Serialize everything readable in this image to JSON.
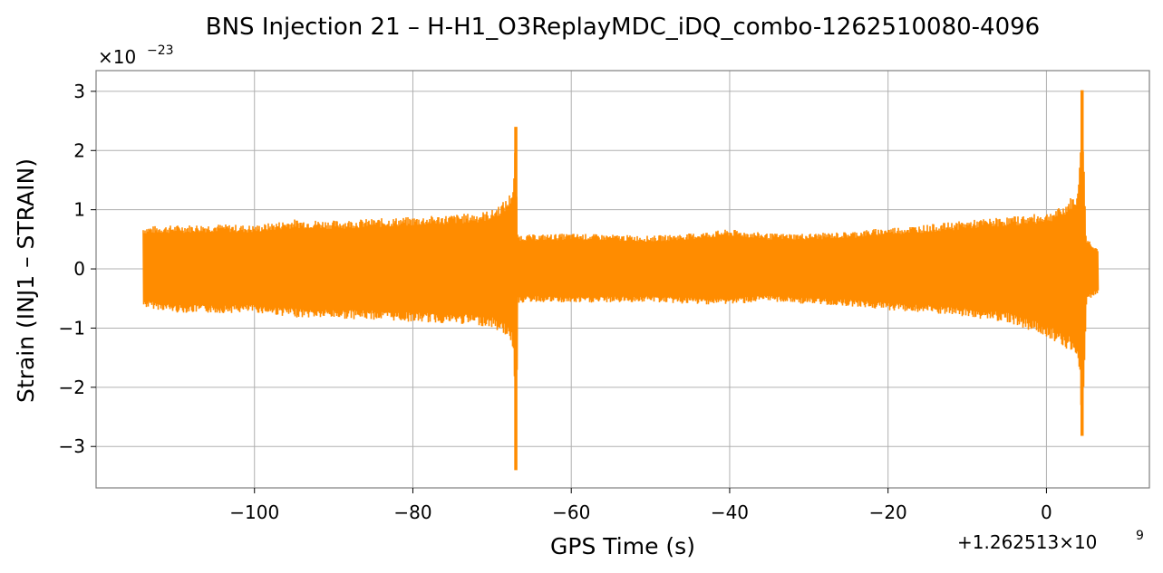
{
  "chart_data": {
    "type": "line",
    "title": "BNS Injection 21 – H-H1_O3ReplayMDC_iDQ_combo-1262510080-4096",
    "xlabel": "GPS Time (s)",
    "ylabel": "Strain (INJ1 – STRAIN)",
    "x_offset_label": "+1.262513×10",
    "x_offset_exp": "9",
    "y_multiplier_label": "×10",
    "y_multiplier_exp": "−23",
    "xlim": [
      -120,
      13
    ],
    "ylim": [
      -3.7,
      3.35
    ],
    "xticks": [
      -100,
      -80,
      -60,
      -40,
      -20,
      0
    ],
    "xtick_labels": [
      "−100",
      "−80",
      "−60",
      "−40",
      "−20",
      "0"
    ],
    "yticks": [
      -3,
      -2,
      -1,
      0,
      1,
      2,
      3
    ],
    "ytick_labels": [
      "−3",
      "−2",
      "−1",
      "0",
      "1",
      "2",
      "3"
    ],
    "grid": true,
    "series": [
      {
        "color": "#ff8c00",
        "envelope": {
          "x": [
            -114,
            -110,
            -105,
            -100,
            -95,
            -90,
            -85,
            -80,
            -75,
            -72,
            -70,
            -68,
            -67.3,
            -67,
            -66.8,
            -65,
            -60,
            -55,
            -50,
            -45,
            -40,
            -35,
            -30,
            -25,
            -20,
            -15,
            -10,
            -5,
            -2,
            0,
            2,
            3,
            4,
            4.5,
            5,
            6,
            6.5
          ],
          "upper": [
            0.72,
            0.74,
            0.76,
            0.74,
            0.84,
            0.82,
            0.85,
            0.88,
            0.92,
            0.95,
            1.0,
            1.2,
            1.45,
            2.4,
            0.58,
            0.58,
            0.6,
            0.58,
            0.56,
            0.6,
            0.67,
            0.6,
            0.6,
            0.63,
            0.7,
            0.75,
            0.82,
            0.88,
            0.92,
            0.95,
            1.05,
            1.2,
            1.3,
            3.02,
            0.55,
            0.4,
            0.35
          ],
          "lower": [
            -0.65,
            -0.74,
            -0.75,
            -0.74,
            -0.82,
            -0.84,
            -0.86,
            -0.9,
            -0.93,
            -0.95,
            -1.0,
            -1.15,
            -1.4,
            -3.4,
            -0.58,
            -0.56,
            -0.58,
            -0.57,
            -0.56,
            -0.6,
            -0.6,
            -0.55,
            -0.6,
            -0.63,
            -0.7,
            -0.75,
            -0.82,
            -0.9,
            -1.05,
            -1.15,
            -1.3,
            -1.4,
            -1.6,
            -2.82,
            -0.55,
            -0.45,
            -0.4
          ]
        }
      }
    ]
  }
}
